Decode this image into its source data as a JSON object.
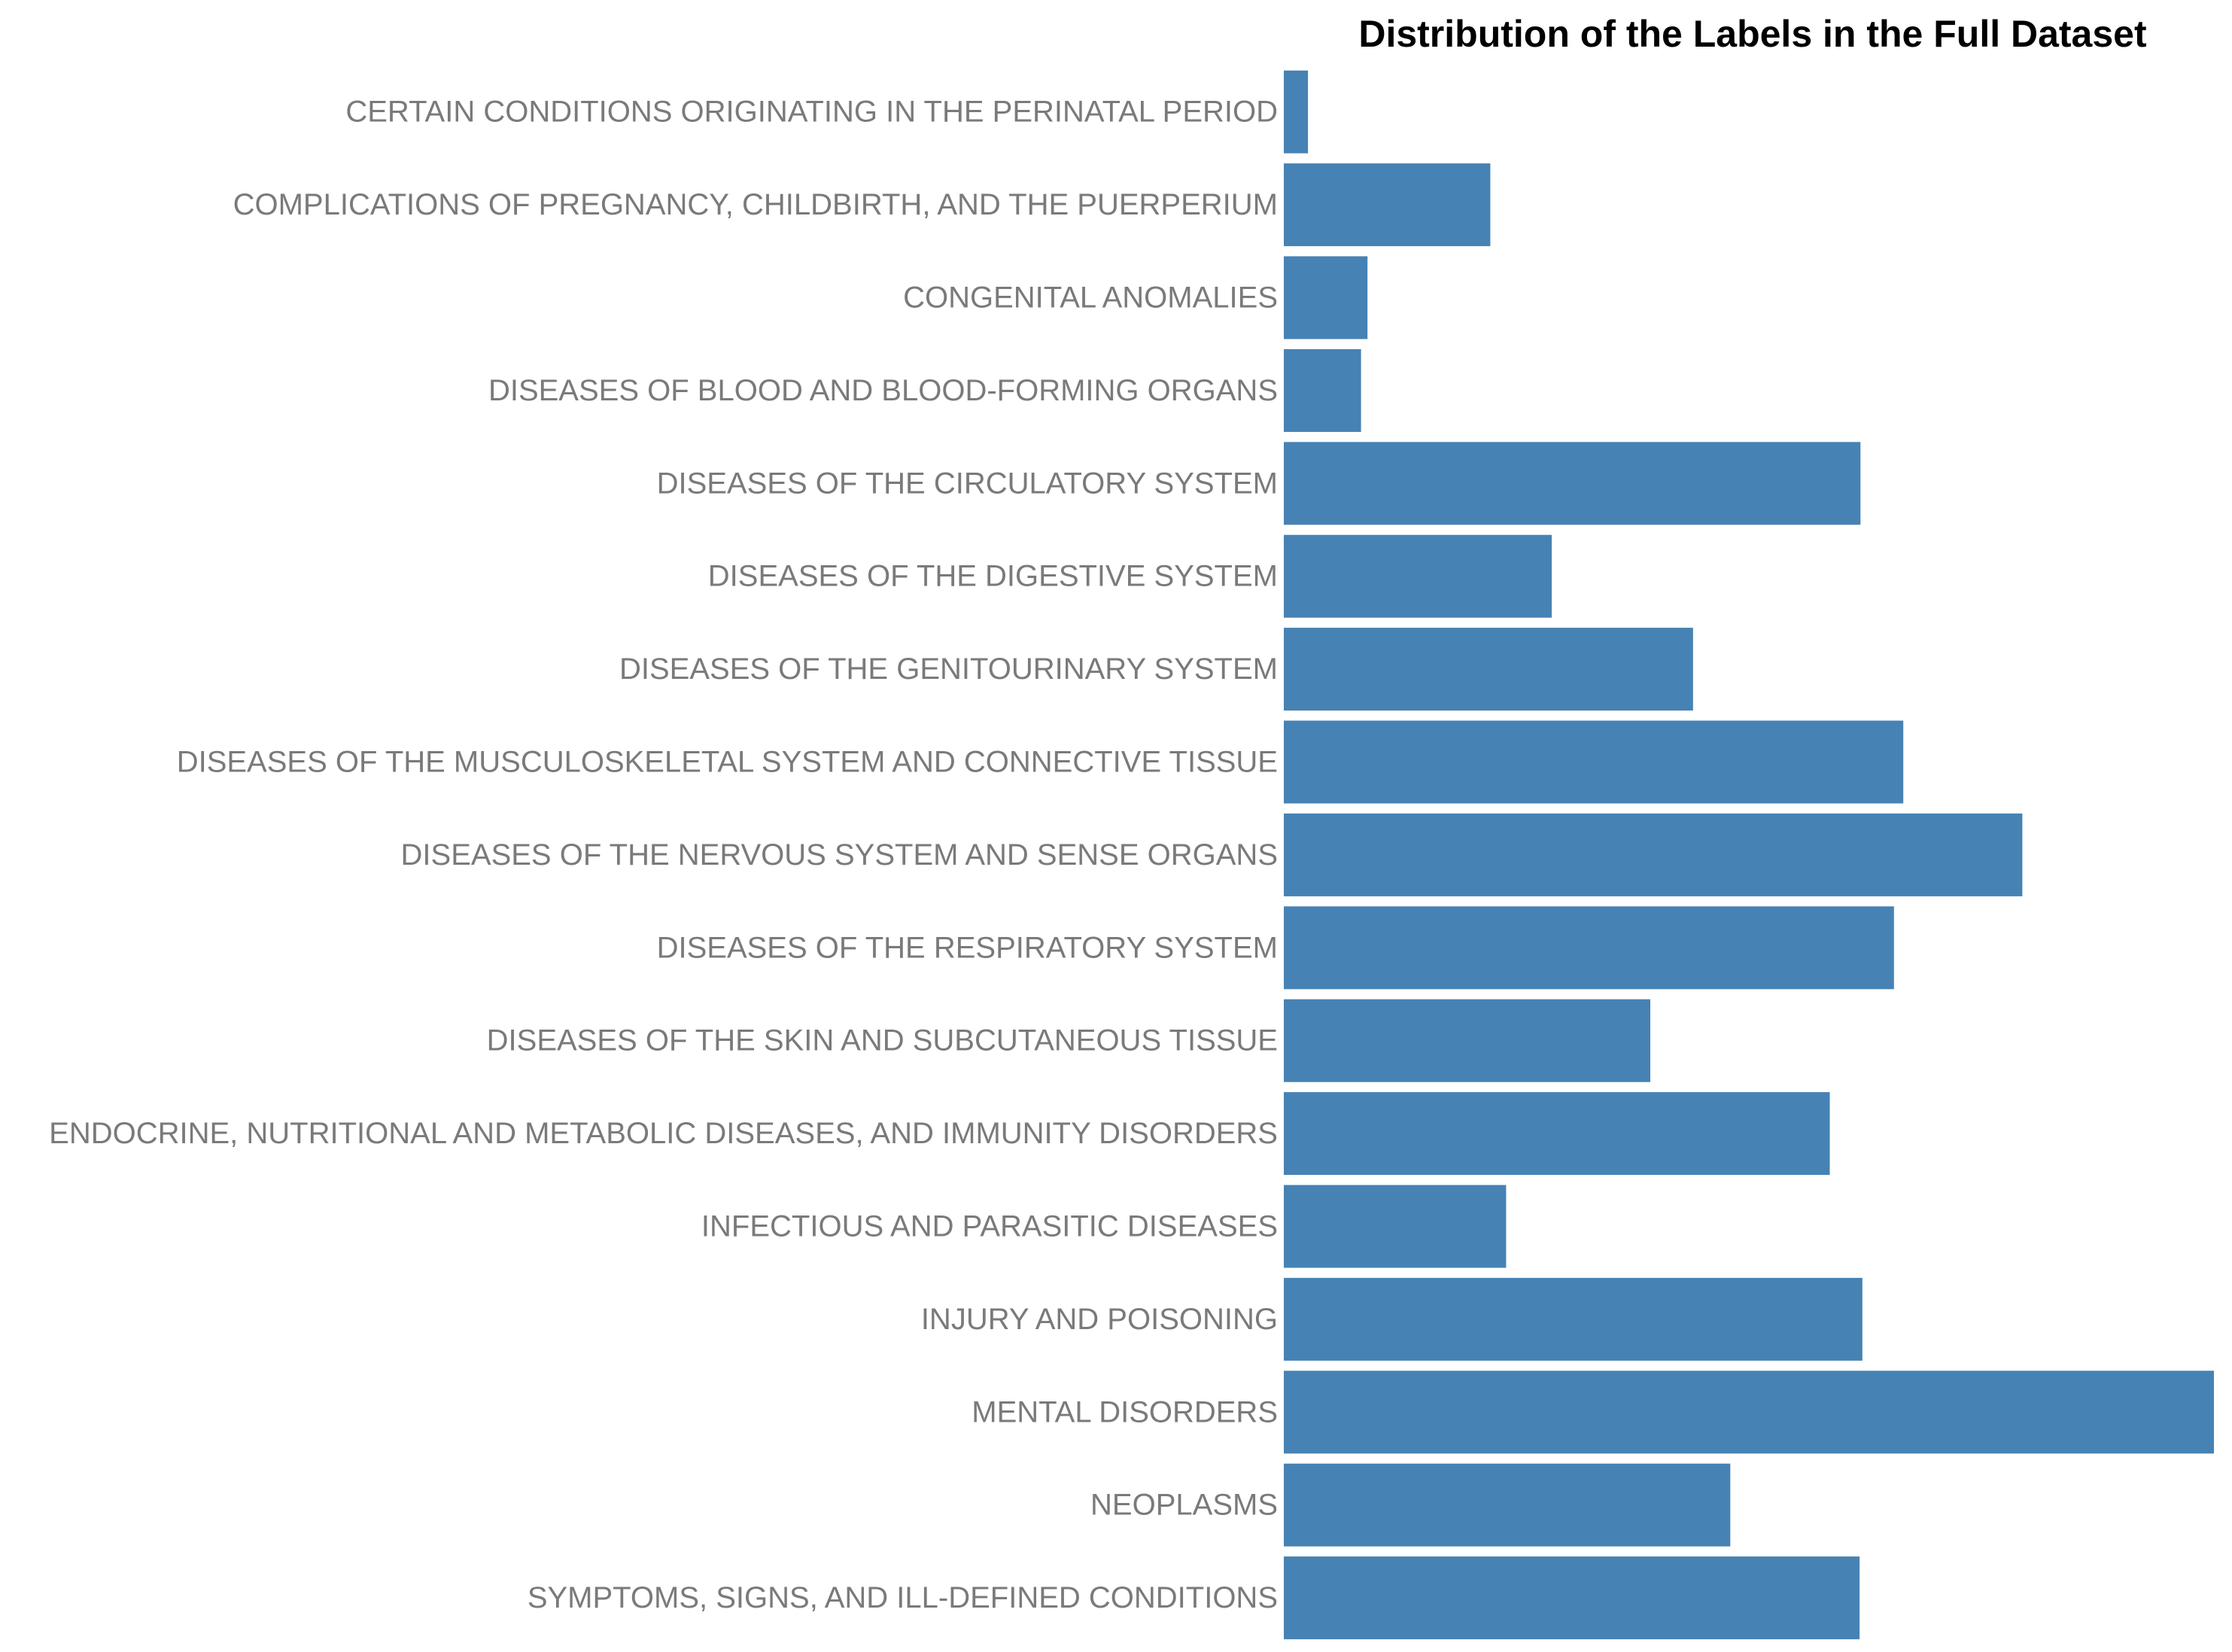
{
  "chart_data": {
    "type": "bar",
    "orientation": "horizontal",
    "title": "Distribution of the Labels in the Full Dataset",
    "xlabel": "",
    "ylabel": "",
    "categories": [
      "CERTAIN CONDITIONS ORIGINATING IN THE PERINATAL PERIOD",
      "COMPLICATIONS OF PREGNANCY, CHILDBIRTH, AND THE PUERPERIUM",
      "CONGENITAL ANOMALIES",
      "DISEASES OF BLOOD AND BLOOD-FORMING ORGANS",
      "DISEASES OF THE CIRCULATORY SYSTEM",
      "DISEASES OF THE DIGESTIVE SYSTEM",
      "DISEASES OF THE GENITOURINARY SYSTEM",
      "DISEASES OF THE MUSCULOSKELETAL SYSTEM AND CONNECTIVE TISSUE",
      "DISEASES OF THE NERVOUS SYSTEM AND SENSE ORGANS",
      "DISEASES OF THE RESPIRATORY SYSTEM",
      "DISEASES OF THE SKIN AND SUBCUTANEOUS TISSUE",
      "ENDOCRINE, NUTRITIONAL AND METABOLIC DISEASES, AND IMMUNITY DISORDERS",
      "INFECTIOUS AND PARASITIC DISEASES",
      "INJURY AND POISONING",
      "MENTAL DISORDERS",
      "NEOPLASMS",
      "SYMPTOMS, SIGNS, AND ILL-DEFINED CONDITIONS"
    ],
    "values": [
      2.6,
      22.2,
      9.0,
      8.3,
      62.0,
      28.8,
      44.0,
      66.6,
      79.4,
      65.6,
      39.4,
      58.7,
      23.9,
      62.2,
      100.0,
      48.0,
      61.9
    ],
    "xlim": [
      0,
      100
    ],
    "axis_ticks_visible": false,
    "grid": false,
    "legend": "none",
    "bar_color": "#4682b4"
  }
}
